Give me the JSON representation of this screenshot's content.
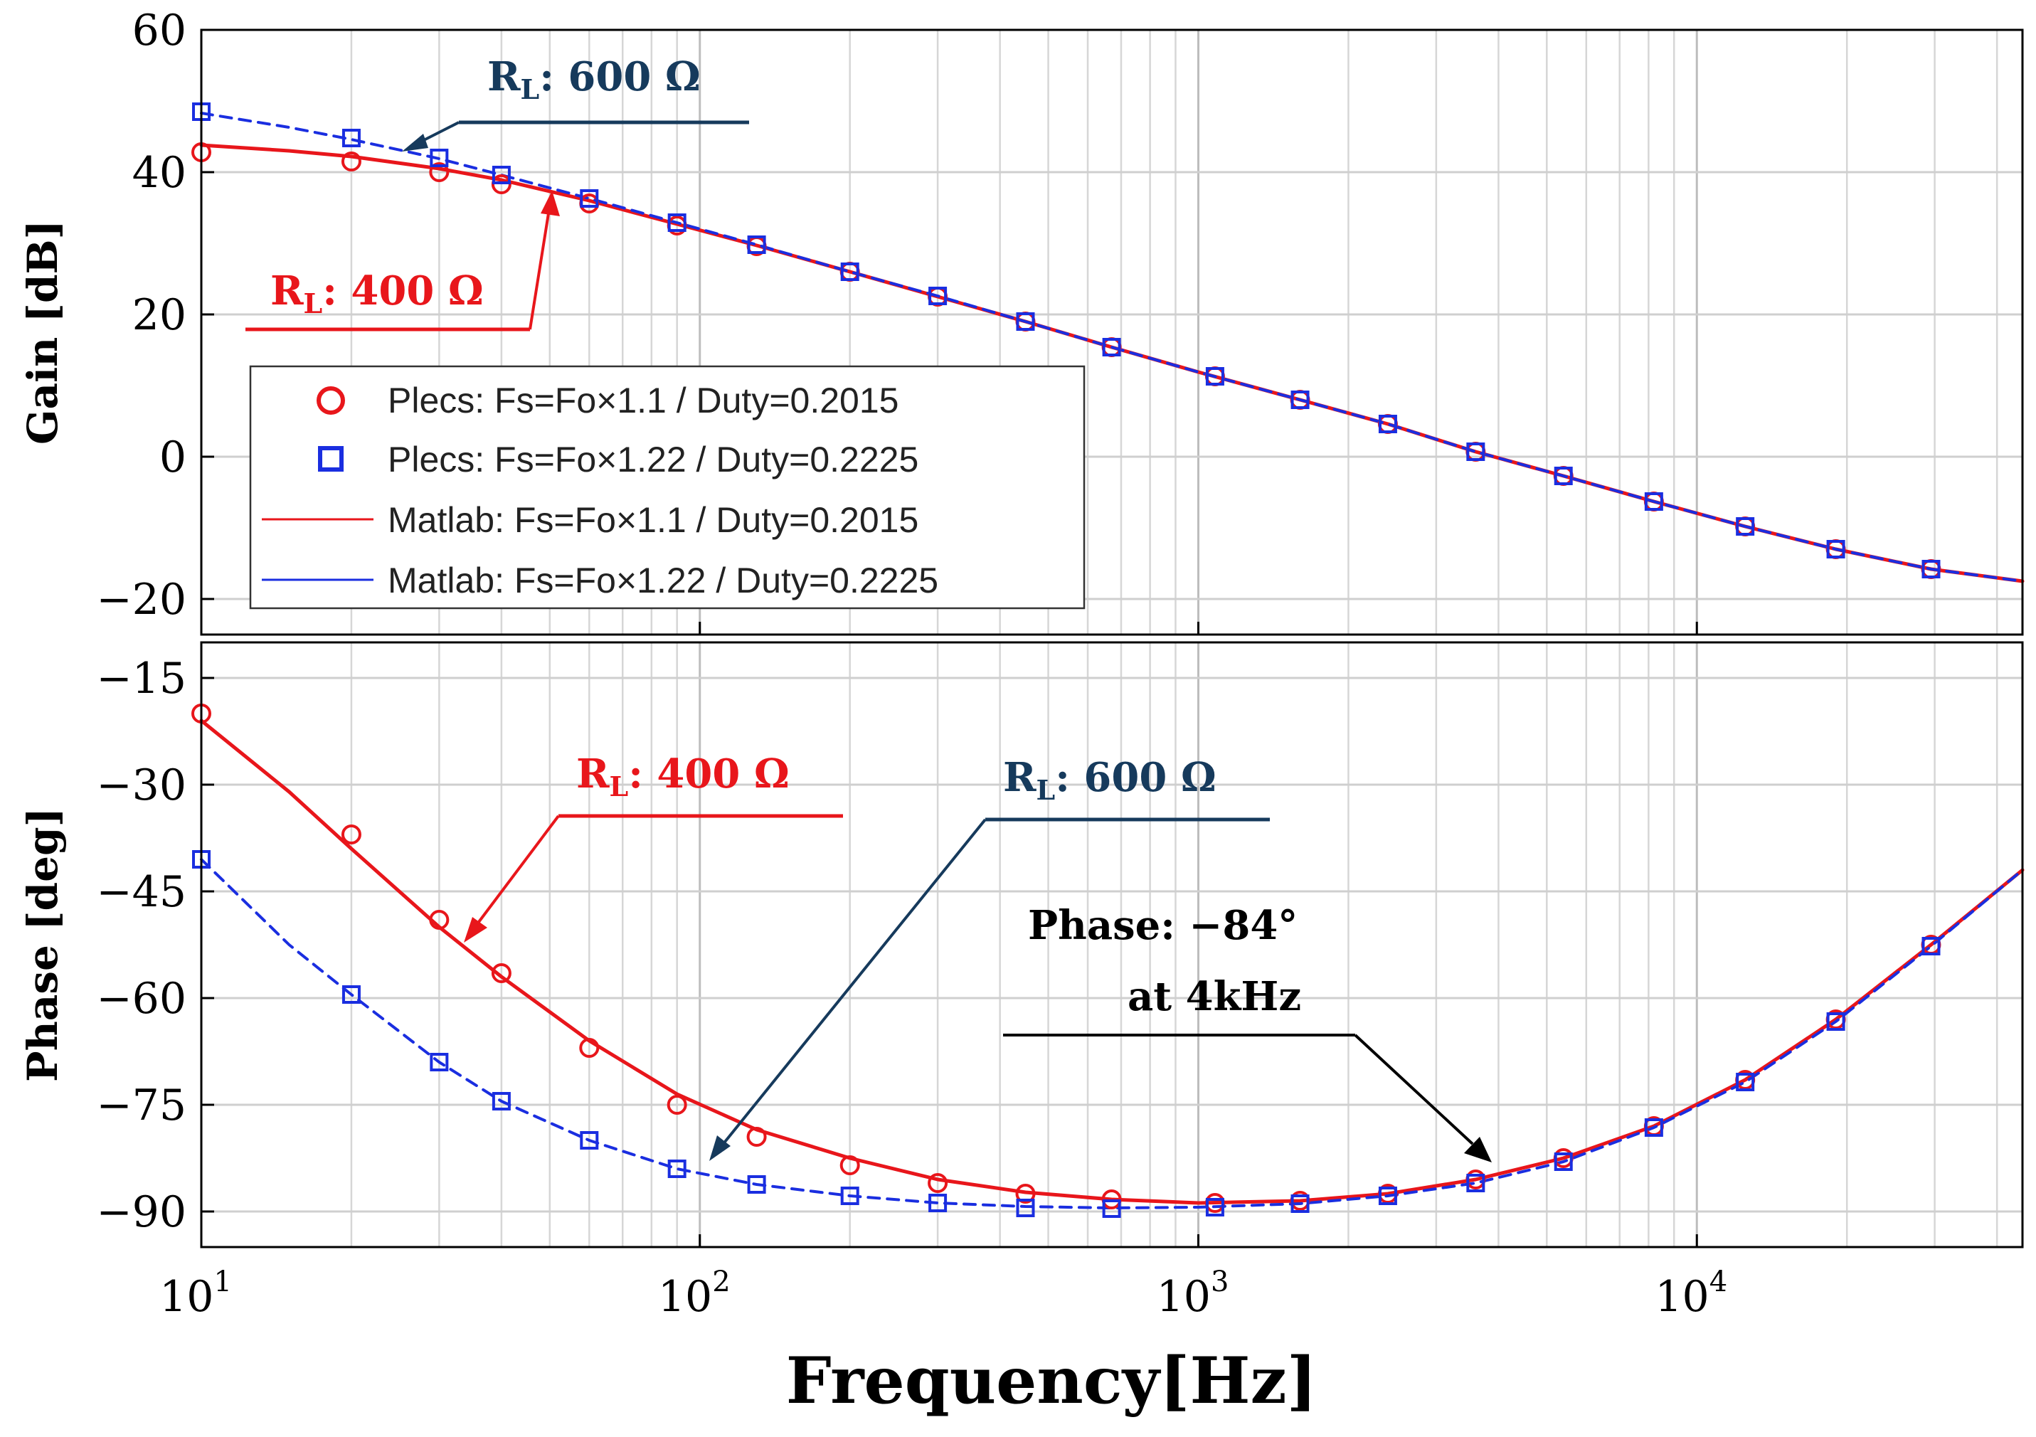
{
  "chart_data": {
    "type": "line",
    "xlabel": "Frequency[Hz]",
    "x_scale": "log",
    "xlim": [
      10,
      45000
    ],
    "x_ticks": [
      {
        "value": 10,
        "base": "10",
        "exp": "1"
      },
      {
        "value": 100,
        "base": "10",
        "exp": "2"
      },
      {
        "value": 1000,
        "base": "10",
        "exp": "3"
      },
      {
        "value": 10000,
        "base": "10",
        "exp": "4"
      }
    ],
    "panels": [
      {
        "id": "gain",
        "ylabel": "Gain [dB]",
        "ylim": [
          -25,
          60
        ],
        "y_ticks": [
          {
            "value": 60,
            "label": "60"
          },
          {
            "value": 40,
            "label": "40"
          },
          {
            "value": 20,
            "label": "20"
          },
          {
            "value": 0,
            "label": "0"
          },
          {
            "value": -20,
            "label": "−20"
          }
        ],
        "series": [
          {
            "name": "Plecs: Fs=Fo×1.1 / Duty=0.2015",
            "kind": "markers",
            "marker": "circle",
            "color": "#e8161b",
            "x": [
              10,
              20,
              30,
              40,
              60,
              90,
              130,
              200,
              300,
              450,
              670,
              1080,
              1600,
              2400,
              3600,
              5400,
              8200,
              12500,
              19000,
              29500
            ],
            "y": [
              42.8,
              41.5,
              40,
              38.3,
              35.6,
              32.5,
              29.6,
              26,
              22.5,
              19,
              15.4,
              11.3,
              8,
              4.6,
              0.7,
              -2.7,
              -6.3,
              -9.8,
              -13,
              -15.8
            ]
          },
          {
            "name": "Plecs: Fs=Fo×1.22 / Duty=0.2225",
            "kind": "markers",
            "marker": "square",
            "color": "#1a2ee0",
            "x": [
              10,
              20,
              30,
              40,
              60,
              90,
              130,
              200,
              300,
              450,
              670,
              1080,
              1600,
              2400,
              3600,
              5400,
              8200,
              12500,
              19000,
              29500
            ],
            "y": [
              48.5,
              44.8,
              42,
              39.6,
              36.3,
              32.9,
              29.8,
              26,
              22.6,
              19,
              15.4,
              11.3,
              8,
              4.6,
              0.7,
              -2.7,
              -6.3,
              -9.8,
              -13,
              -15.8
            ]
          },
          {
            "name": "Matlab: Fs=Fo×1.1 / Duty=0.2015",
            "kind": "line",
            "style": "solid",
            "color": "#e8161b",
            "x": [
              10,
              15,
              20,
              30,
              40,
              60,
              90,
              130,
              200,
              300,
              450,
              670,
              1000,
              1600,
              2400,
              3600,
              5400,
              8200,
              12500,
              19000,
              29500,
              45000
            ],
            "y": [
              43.8,
              43,
              42.2,
              40.5,
              38.9,
              36,
              32.7,
              29.7,
              26,
              22.5,
              19,
              15.4,
              11.9,
              8,
              4.6,
              0.7,
              -2.7,
              -6.3,
              -9.8,
              -13,
              -15.8,
              -17.5
            ]
          },
          {
            "name": "Matlab: Fs=Fo×1.22 / Duty=0.2225",
            "kind": "line",
            "style": "dashed",
            "color": "#1a2ee0",
            "x": [
              10,
              15,
              20,
              30,
              40,
              60,
              90,
              130,
              200,
              300,
              450,
              670,
              1000,
              1600,
              2400,
              3600,
              5400,
              8200,
              12500,
              19000,
              29500,
              45000
            ],
            "y": [
              48.3,
              46.3,
              44.6,
              41.9,
              39.6,
              36.3,
              32.9,
              29.8,
              26,
              22.6,
              19,
              15.4,
              11.9,
              8,
              4.6,
              0.7,
              -2.7,
              -6.3,
              -9.8,
              -13,
              -15.8,
              -17.5
            ]
          }
        ],
        "annotations": [
          {
            "main": "R",
            "sub": "L",
            "rest": ": 600 Ω",
            "color": "#163a5c"
          },
          {
            "main": "R",
            "sub": "L",
            "rest": ": 400 Ω",
            "color": "#e8161b"
          }
        ]
      },
      {
        "id": "phase",
        "ylabel": "Phase [deg]",
        "ylim": [
          -95,
          -10
        ],
        "y_ticks": [
          {
            "value": -15,
            "label": "−15"
          },
          {
            "value": -30,
            "label": "−30"
          },
          {
            "value": -45,
            "label": "−45"
          },
          {
            "value": -60,
            "label": "−60"
          },
          {
            "value": -75,
            "label": "−75"
          },
          {
            "value": -90,
            "label": "−90"
          }
        ],
        "series": [
          {
            "name": "Plecs: Fs=Fo×1.1 / Duty=0.2015",
            "kind": "markers",
            "marker": "circle",
            "color": "#e8161b",
            "x": [
              10,
              20,
              30,
              40,
              60,
              90,
              130,
              200,
              300,
              450,
              670,
              1080,
              1600,
              2400,
              3600,
              5400,
              8200,
              12500,
              19000,
              29500
            ],
            "y": [
              -20,
              -37,
              -49,
              -56.5,
              -67,
              -75,
              -79.5,
              -83.5,
              -86,
              -87.5,
              -88.3,
              -88.8,
              -88.5,
              -87.5,
              -85.5,
              -82.5,
              -78,
              -71.5,
              -63,
              -52.5
            ]
          },
          {
            "name": "Plecs: Fs=Fo×1.22 / Duty=0.2225",
            "kind": "markers",
            "marker": "square",
            "color": "#1a2ee0",
            "x": [
              10,
              20,
              30,
              40,
              60,
              90,
              130,
              200,
              300,
              450,
              670,
              1080,
              1600,
              2400,
              3600,
              5400,
              8200,
              12500,
              19000,
              29500
            ],
            "y": [
              -40.5,
              -59.5,
              -69,
              -74.5,
              -80,
              -84,
              -86.2,
              -87.8,
              -88.8,
              -89.5,
              -89.6,
              -89.4,
              -88.9,
              -87.8,
              -86,
              -83,
              -78.2,
              -71.8,
              -63.3,
              -52.7
            ]
          },
          {
            "name": "Matlab: Fs=Fo×1.1 / Duty=0.2015",
            "kind": "line",
            "style": "solid",
            "color": "#e8161b",
            "x": [
              10,
              15,
              20,
              30,
              40,
              60,
              90,
              130,
              200,
              300,
              450,
              670,
              1000,
              1600,
              2400,
              3600,
              5400,
              8200,
              12500,
              19000,
              29500,
              45000
            ],
            "y": [
              -21,
              -31,
              -39,
              -50,
              -57,
              -66,
              -73.5,
              -78.5,
              -82.5,
              -85.5,
              -87.3,
              -88.3,
              -88.8,
              -88.5,
              -87.5,
              -85.5,
              -82.5,
              -78,
              -71.5,
              -63,
              -52.5,
              -42
            ]
          },
          {
            "name": "Matlab: Fs=Fo×1.22 / Duty=0.2225",
            "kind": "line",
            "style": "dashed",
            "color": "#1a2ee0",
            "x": [
              10,
              15,
              20,
              30,
              40,
              60,
              90,
              130,
              200,
              300,
              450,
              670,
              1000,
              1600,
              2400,
              3600,
              5400,
              8200,
              12500,
              19000,
              29500,
              45000
            ],
            "y": [
              -40.5,
              -52.5,
              -59.5,
              -69,
              -74.5,
              -80,
              -84,
              -86.2,
              -87.8,
              -88.8,
              -89.3,
              -89.5,
              -89.4,
              -88.9,
              -87.8,
              -86,
              -83,
              -78.2,
              -71.8,
              -63.3,
              -52.7,
              -42
            ]
          }
        ],
        "annotations": [
          {
            "main": "R",
            "sub": "L",
            "rest": ": 400 Ω",
            "color": "#e8161b"
          },
          {
            "main": "R",
            "sub": "L",
            "rest": ": 600 Ω",
            "color": "#163a5c"
          },
          {
            "line1": "Phase: −84°",
            "line2": "at 4kHz",
            "color": "#000000"
          }
        ]
      }
    ]
  }
}
